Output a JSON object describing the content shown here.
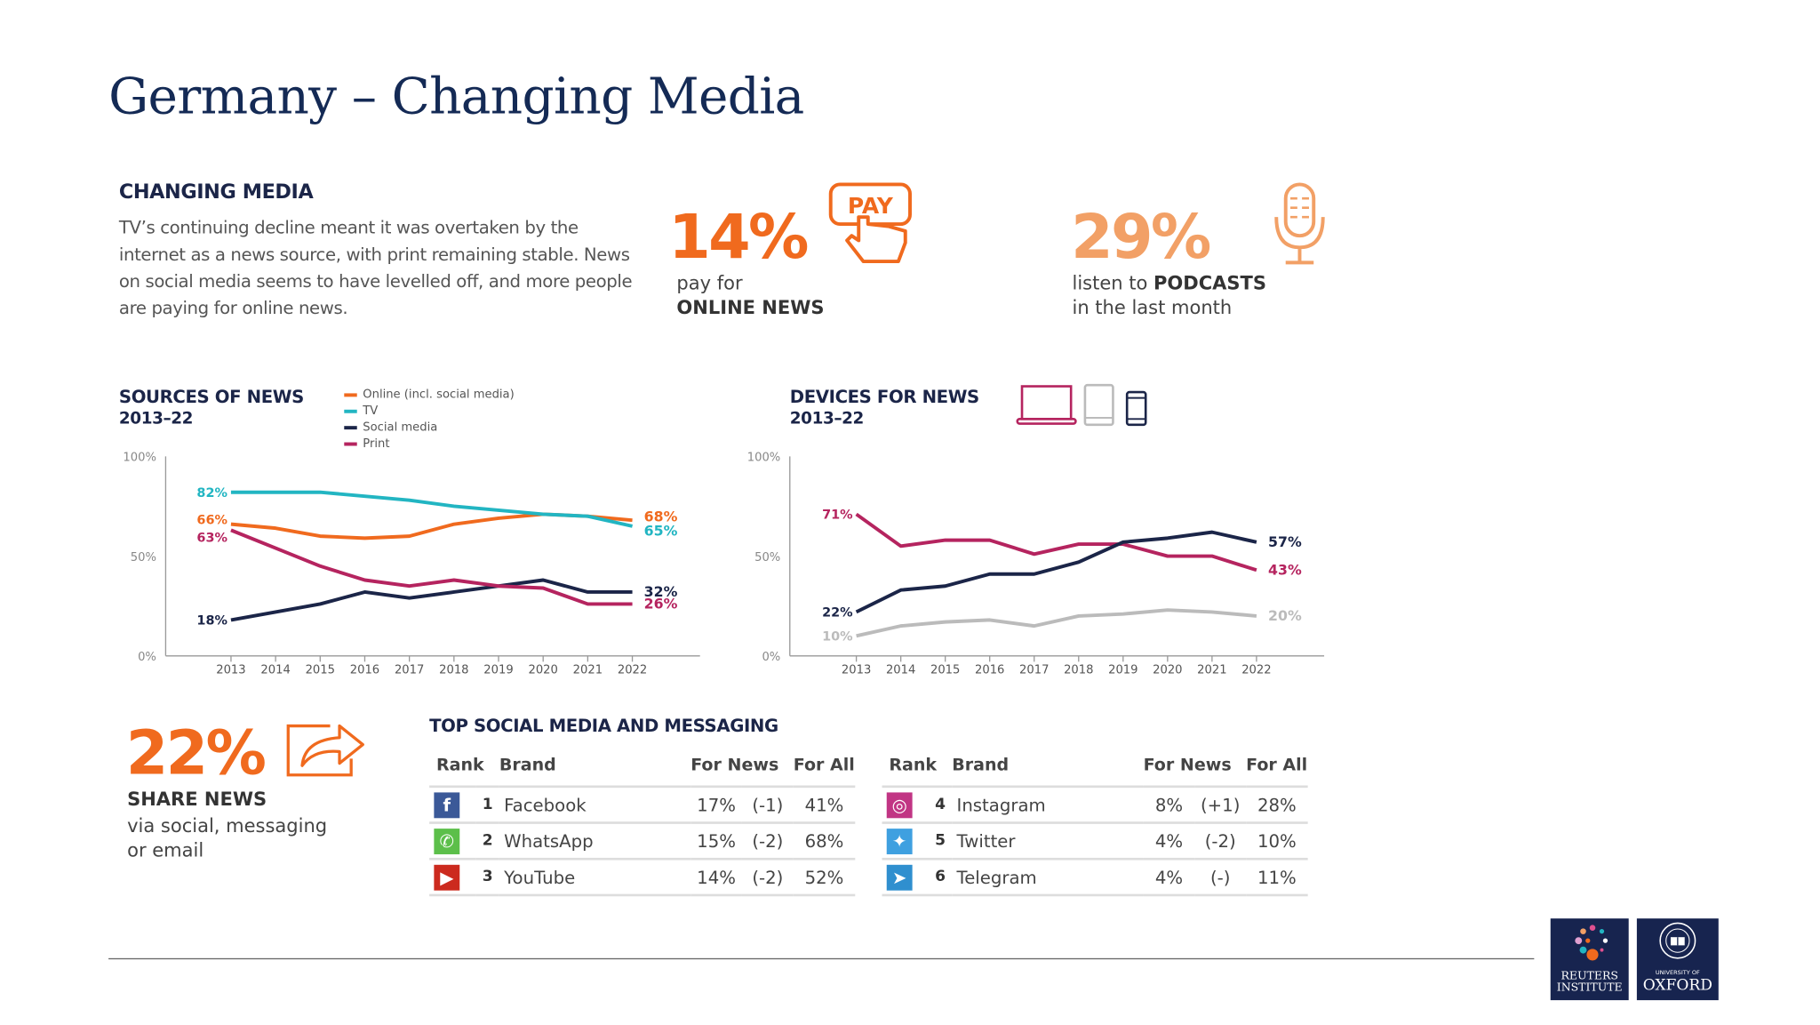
{
  "title": "Germany – Changing Media",
  "intro": {
    "heading": "CHANGING MEDIA",
    "text": "TV’s continuing decline meant it was overtaken by the internet as a news source, with print remaining stable. News on social media seems to have levelled off, and more people are paying for online news."
  },
  "stats": [
    {
      "value": "14%",
      "line1": "pay for",
      "line2": "ONLINE NEWS",
      "icon": "pay-hand-icon",
      "icon_text": "PAY",
      "color": "#f06a1e"
    },
    {
      "value": "29%",
      "line1_pre": "listen to ",
      "line1_bold": "PODCASTS",
      "line2": "in the last month",
      "icon": "microphone-icon",
      "color": "#f2a066"
    },
    {
      "value": "22%",
      "line1": "SHARE NEWS",
      "line2": "via social, messaging",
      "line3": "or email",
      "icon": "share-icon",
      "color": "#f06a1e"
    }
  ],
  "chart_data": [
    {
      "type": "line",
      "title": "SOURCES OF NEWS",
      "subtitle": "2013–22",
      "x": [
        2013,
        2014,
        2015,
        2016,
        2017,
        2018,
        2019,
        2020,
        2021,
        2022
      ],
      "ylim": [
        0,
        100
      ],
      "yticks": [
        "0%",
        "50%",
        "100%"
      ],
      "legend": "top",
      "grid": false,
      "series": [
        {
          "name": "Online (incl. social media)",
          "color": "#f06a1e",
          "values": [
            66,
            64,
            60,
            59,
            60,
            66,
            69,
            71,
            70,
            68
          ],
          "start_label": "66%",
          "end_label": "68%"
        },
        {
          "name": "TV",
          "color": "#22b5c2",
          "values": [
            82,
            82,
            82,
            80,
            78,
            75,
            73,
            71,
            70,
            65
          ],
          "start_label": "82%",
          "end_label": "65%"
        },
        {
          "name": "Social media",
          "color": "#1b2548",
          "values": [
            18,
            22,
            26,
            32,
            29,
            32,
            35,
            38,
            32,
            32
          ],
          "start_label": "18%",
          "end_label": "32%"
        },
        {
          "name": "Print",
          "color": "#b5245f",
          "values": [
            63,
            54,
            45,
            38,
            35,
            38,
            35,
            34,
            26,
            26
          ],
          "start_label": "63%",
          "end_label": "26%"
        }
      ]
    },
    {
      "type": "line",
      "title": "DEVICES FOR NEWS",
      "subtitle": "2013–22",
      "x": [
        2013,
        2014,
        2015,
        2016,
        2017,
        2018,
        2019,
        2020,
        2021,
        2022
      ],
      "ylim": [
        0,
        100
      ],
      "yticks": [
        "0%",
        "50%",
        "100%"
      ],
      "grid": false,
      "legend_icons": [
        "laptop-icon",
        "tablet-icon",
        "smartphone-icon"
      ],
      "series": [
        {
          "device": "computer",
          "color": "#b5245f",
          "values": [
            71,
            55,
            58,
            58,
            51,
            56,
            56,
            50,
            50,
            43
          ],
          "start_label": "71%",
          "end_label": "43%"
        },
        {
          "device": "smartphone",
          "color": "#1b2548",
          "values": [
            22,
            33,
            35,
            41,
            41,
            47,
            57,
            59,
            62,
            57
          ],
          "start_label": "22%",
          "end_label": "57%"
        },
        {
          "device": "tablet",
          "color": "#bbbbbb",
          "values": [
            10,
            15,
            17,
            18,
            15,
            20,
            21,
            23,
            22,
            20
          ],
          "start_label": "10%",
          "end_label": "20%"
        }
      ]
    }
  ],
  "social": {
    "heading": "TOP SOCIAL MEDIA AND MESSAGING",
    "headers": [
      "Rank",
      "Brand",
      "For News",
      "For All"
    ],
    "rows": [
      {
        "icon": "facebook-icon",
        "color": "#3b5998",
        "glyph": "f",
        "rank": "1",
        "brand": "Facebook",
        "news": "17%",
        "change": "(-1)",
        "all": "41%"
      },
      {
        "icon": "whatsapp-icon",
        "color": "#5cbf4a",
        "glyph": "✆",
        "rank": "2",
        "brand": "WhatsApp",
        "news": "15%",
        "change": "(-2)",
        "all": "68%"
      },
      {
        "icon": "youtube-icon",
        "color": "#cc2a1e",
        "glyph": "▶",
        "rank": "3",
        "brand": "YouTube",
        "news": "14%",
        "change": "(-2)",
        "all": "52%"
      },
      {
        "icon": "instagram-icon",
        "color": "#c13584",
        "glyph": "◎",
        "rank": "4",
        "brand": "Instagram",
        "news": "8%",
        "change": "(+1)",
        "all": "28%"
      },
      {
        "icon": "twitter-icon",
        "color": "#3fa0e0",
        "glyph": "✦",
        "rank": "5",
        "brand": "Twitter",
        "news": "4%",
        "change": "(-2)",
        "all": "10%"
      },
      {
        "icon": "telegram-icon",
        "color": "#2f8fcf",
        "glyph": "➤",
        "rank": "6",
        "brand": "Telegram",
        "news": "4%",
        "change": "(-)",
        "all": "11%"
      }
    ]
  },
  "logos": {
    "reuters": [
      "REUTERS",
      "INSTITUTE"
    ],
    "oxford": [
      "UNIVERSITY OF",
      "OXFORD"
    ]
  }
}
